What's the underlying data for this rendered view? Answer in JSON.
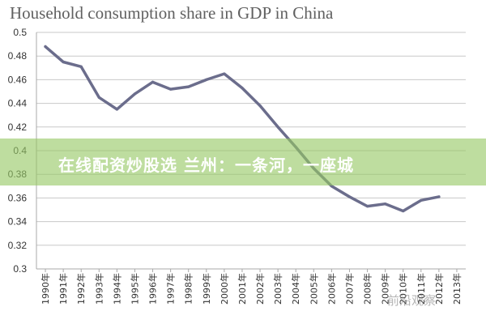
{
  "chart_data": {
    "type": "line",
    "title": "Household consumption share in GDP in China",
    "xlabel": "",
    "ylabel": "",
    "categories": [
      "1990年",
      "1991年",
      "1992年",
      "1993年",
      "1994年",
      "1995年",
      "1996年",
      "1997年",
      "1998年",
      "1999年",
      "2000年",
      "2001年",
      "2002年",
      "2003年",
      "2004年",
      "2005年",
      "2006年",
      "2007年",
      "2008年",
      "2009年",
      "2010年",
      "2011年",
      "2012年",
      "2013年"
    ],
    "series": [
      {
        "values": [
          0.488,
          0.475,
          0.471,
          0.445,
          0.435,
          0.448,
          0.458,
          0.452,
          0.454,
          0.46,
          0.465,
          0.453,
          0.438,
          0.42,
          0.403,
          0.385,
          0.37,
          0.361,
          0.353,
          0.355,
          0.349,
          0.358,
          0.361,
          null
        ],
        "color": "#6b6d8c"
      }
    ],
    "ylim": [
      0.3,
      0.5
    ],
    "yticks": [
      "0.5",
      "0.48",
      "0.46",
      "0.44",
      "0.42",
      "0.4",
      "0.38",
      "0.36",
      "0.34",
      "0.32",
      "0.3"
    ],
    "grid": true,
    "legend": "none"
  },
  "overlay": {
    "banner_text": "在线配资炒股选 兰州：一条河，一座城",
    "banner_color": "#96c864"
  },
  "watermark": {
    "text": "前沿观察"
  }
}
